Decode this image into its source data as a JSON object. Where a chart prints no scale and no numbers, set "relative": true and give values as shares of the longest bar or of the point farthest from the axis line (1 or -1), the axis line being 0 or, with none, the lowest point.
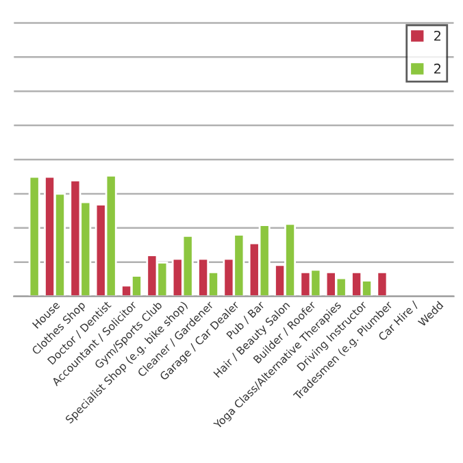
{
  "chart_data": {
    "type": "bar",
    "relative": true,
    "grid": "y",
    "legend": "top right",
    "categories": [
      null,
      "House",
      "Clothes Shop",
      "Doctor / Dentist",
      "Accountant / Solicitor",
      "Gym/Sports Club",
      "Specialist Shop (e.g. bike shop)",
      "Cleaner / Gardener",
      "Garage / Car Dealer",
      "Pub / Bar",
      "Hair / Beauty Salon",
      "Builder / Roofer",
      "Yoga Class/Alternative Therapies",
      "Driving Instructor",
      "Tradesmen (e.g. Plumber",
      "Car Hire /",
      "Wedd"
    ],
    "series": [
      {
        "name": "2",
        "color": "#c4344a",
        "values": [
          null,
          0.99,
          0.96,
          0.76,
          0.09,
          0.34,
          0.31,
          0.31,
          0.31,
          0.44,
          0.26,
          0.2,
          0.2,
          0.2,
          0.2,
          null,
          null
        ]
      },
      {
        "name": "2",
        "color": "#8cc63f",
        "values": [
          0.99,
          0.85,
          0.78,
          1.0,
          0.17,
          0.28,
          0.5,
          0.2,
          0.51,
          0.59,
          0.6,
          0.22,
          0.15,
          0.13,
          null,
          null,
          null
        ]
      }
    ]
  }
}
